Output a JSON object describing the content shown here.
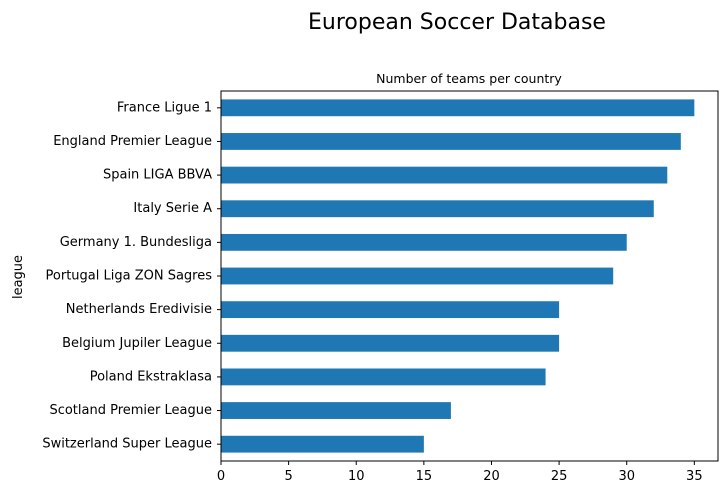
{
  "chart_data": {
    "type": "bar",
    "orientation": "horizontal",
    "suptitle": "European Soccer Database",
    "title": "Number of teams per country",
    "xlabel": "",
    "ylabel": "league",
    "xlim": [
      0,
      36.75
    ],
    "xticks": [
      0,
      5,
      10,
      15,
      20,
      25,
      30,
      35
    ],
    "grid": false,
    "bar_color": "#1f77b4",
    "categories": [
      "France Ligue 1",
      "England Premier League",
      "Spain LIGA BBVA",
      "Italy Serie A",
      "Germany 1. Bundesliga",
      "Portugal Liga ZON Sagres",
      "Netherlands Eredivisie",
      "Belgium Jupiler League",
      "Poland Ekstraklasa",
      "Scotland Premier League",
      "Switzerland Super League"
    ],
    "values": [
      35,
      34,
      33,
      32,
      30,
      29,
      25,
      25,
      24,
      17,
      15
    ]
  }
}
